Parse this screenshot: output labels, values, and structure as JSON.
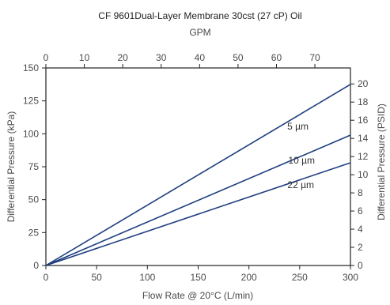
{
  "chart_data": {
    "type": "line",
    "title": "CF 9601Dual-Layer Membrane 30cst (27 cP) Oil",
    "xlabel": "Flow Rate @ 20°C (L/min)",
    "ylabel": "Differential Pressure (kPa)",
    "x2label": "GPM",
    "y2label": "Differential Pressure (PSID)",
    "xlim": [
      0,
      300
    ],
    "ylim": [
      0,
      150
    ],
    "x_ticks": [
      "0",
      "50",
      "100",
      "150",
      "200",
      "250",
      "300"
    ],
    "y_ticks": [
      "0",
      "25",
      "50",
      "75",
      "100",
      "125",
      "150"
    ],
    "x2_lim": [
      0,
      79.25
    ],
    "x2_ticks": [
      "0",
      "10",
      "20",
      "30",
      "40",
      "50",
      "60",
      "70"
    ],
    "y2_lim": [
      0,
      21.76
    ],
    "y2_ticks": [
      "0",
      "2",
      "4",
      "6",
      "8",
      "10",
      "12",
      "14",
      "16",
      "18",
      "20"
    ],
    "grid": false,
    "series": [
      {
        "name": "5 µm",
        "x": [
          0,
          300
        ],
        "y": [
          0,
          137.5
        ]
      },
      {
        "name": "10 µm",
        "x": [
          0,
          300
        ],
        "y": [
          0,
          99
        ]
      },
      {
        "name": "22 µm",
        "x": [
          0,
          300
        ],
        "y": [
          0,
          78
        ]
      }
    ],
    "line_color": "#1f3f7f"
  }
}
